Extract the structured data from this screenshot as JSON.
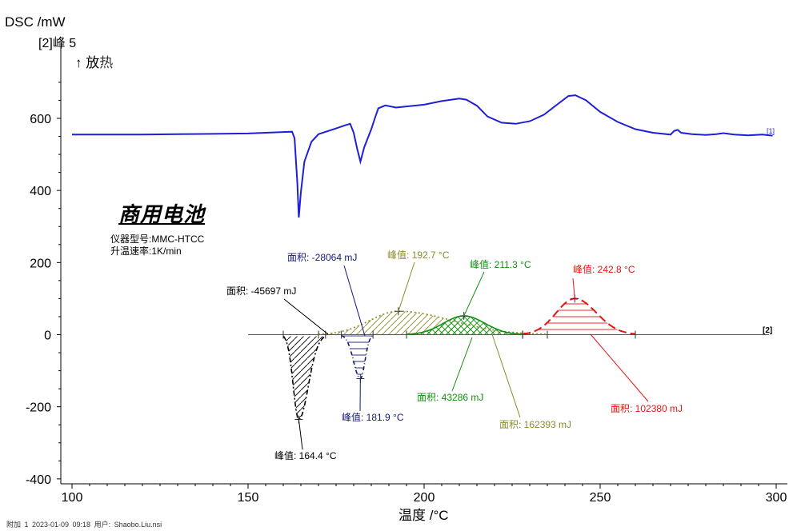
{
  "header": {
    "y_axis_label": "DSC /mW",
    "subtitle": "[2]峰 5",
    "exo_arrow": "↑",
    "exo_label": "放",
    "exo_label2": "热"
  },
  "sample": {
    "title": "商用电池",
    "instrument": "仪器型号:MMC-HTCC",
    "rate": "升温速率:1K/min"
  },
  "x_axis_label": "温度 /°C",
  "footer": "附加 1   2023-01-09 09:18   用户: Shaobo.Liu.nsi",
  "chart_data": {
    "type": "line",
    "xlabel": "温度 /°C",
    "ylabel": "DSC /mW",
    "xlim": [
      100,
      300
    ],
    "ylim": [
      -400,
      750
    ],
    "x_ticks": [
      100,
      150,
      200,
      250,
      300
    ],
    "y_ticks": [
      -400,
      -200,
      0,
      200,
      400,
      600
    ],
    "grid": false,
    "series": [
      {
        "name": "[1]",
        "color": "#1f1fd6",
        "points": [
          [
            100,
            555
          ],
          [
            120,
            555
          ],
          [
            130,
            556
          ],
          [
            140,
            557
          ],
          [
            150,
            558
          ],
          [
            155,
            560
          ],
          [
            160,
            562
          ],
          [
            162.5,
            563
          ],
          [
            163.2,
            545
          ],
          [
            164,
            420
          ],
          [
            164.4,
            325
          ],
          [
            165,
            395
          ],
          [
            166,
            480
          ],
          [
            168,
            535
          ],
          [
            170,
            556
          ],
          [
            175,
            572
          ],
          [
            178,
            582
          ],
          [
            179,
            585
          ],
          [
            180,
            560
          ],
          [
            181,
            515
          ],
          [
            181.9,
            480
          ],
          [
            183,
            520
          ],
          [
            185,
            570
          ],
          [
            186,
            600
          ],
          [
            187,
            628
          ],
          [
            189,
            636
          ],
          [
            192,
            630
          ],
          [
            195,
            633
          ],
          [
            200,
            638
          ],
          [
            205,
            648
          ],
          [
            210,
            655
          ],
          [
            212,
            652
          ],
          [
            215,
            635
          ],
          [
            218,
            605
          ],
          [
            222,
            588
          ],
          [
            226,
            585
          ],
          [
            230,
            592
          ],
          [
            234,
            610
          ],
          [
            238,
            640
          ],
          [
            241,
            662
          ],
          [
            243,
            664
          ],
          [
            246,
            650
          ],
          [
            250,
            618
          ],
          [
            255,
            590
          ],
          [
            260,
            570
          ],
          [
            265,
            560
          ],
          [
            270,
            555
          ],
          [
            271,
            565
          ],
          [
            272,
            568
          ],
          [
            273,
            560
          ],
          [
            276,
            556
          ],
          [
            280,
            554
          ],
          [
            283,
            556
          ],
          [
            285,
            559
          ],
          [
            288,
            555
          ],
          [
            292,
            553
          ],
          [
            296,
            555
          ],
          [
            299,
            552
          ]
        ]
      }
    ],
    "peak_curves": [
      {
        "name": "[2]",
        "color": "#000000",
        "peak": 164.4,
        "min": -235,
        "range": [
          160,
          172
        ],
        "label": "峰值: 164.4 °C",
        "area_label": "面积: -45697 mJ"
      },
      {
        "name": "[2]",
        "color": "#16167a",
        "peak": 181.9,
        "min": -122,
        "range": [
          176.5,
          185.5
        ],
        "label": "峰值: 181.9 °C",
        "area_label": "面积: -28064 mJ"
      },
      {
        "name": "[2]",
        "color": "#8b8b2a",
        "peak": 192.7,
        "max": 65,
        "range": [
          170,
          235
        ],
        "label": "峰值: 192.7 °C",
        "area_label": "面积: 162393 mJ"
      },
      {
        "name": "[2]",
        "color": "#109010",
        "peak": 211.3,
        "max": 52,
        "range": [
          195,
          228
        ],
        "label": "峰值: 211.3 °C",
        "area_label": "面积: 43286 mJ"
      },
      {
        "name": "[2]",
        "color": "#e41414",
        "peak": 242.8,
        "max": 100,
        "range": [
          228,
          260
        ],
        "label": "峰值: 242.8 °C",
        "area_label": "面积: 102380 mJ"
      }
    ]
  }
}
